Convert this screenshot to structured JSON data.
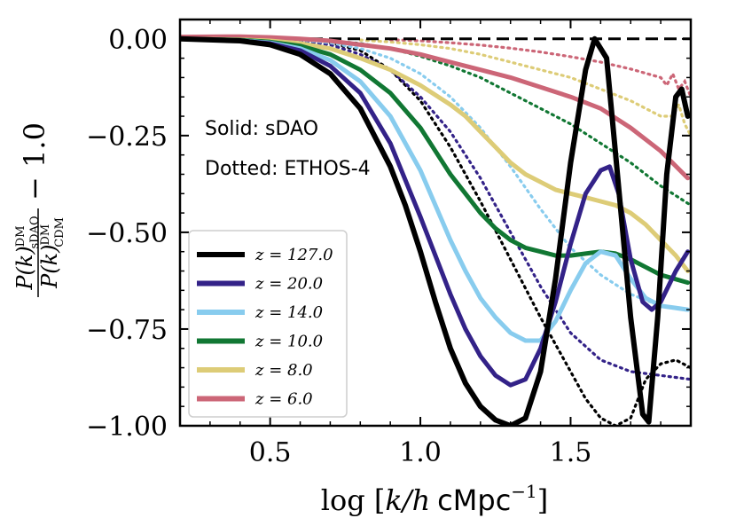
{
  "chart_data": {
    "type": "line",
    "title": "",
    "xlabel": "log [k/h cMpc^-1]",
    "xlabel_parts": {
      "prefix": "log [",
      "var": "k/h",
      "unit": "cMpc",
      "exp": "−1",
      "suffix": "]"
    },
    "ylabel": "P(k)_sDAO^DM / P(k)_CDM^DM − 1.0",
    "ylabel_parts": {
      "num": "P(k)",
      "num_sub": "sDAO",
      "num_sup": "DM",
      "den": "P(k)",
      "den_sub": "CDM",
      "den_sup": "DM",
      "tail": "− 1.0"
    },
    "xlim": [
      0.2,
      1.9
    ],
    "ylim": [
      -1.0,
      0.05
    ],
    "xticks": [
      0.5,
      1.0,
      1.5
    ],
    "xtick_labels": [
      "0.5",
      "1.0",
      "1.5"
    ],
    "yticks": [
      0.0,
      -0.25,
      -0.5,
      -0.75,
      -1.0
    ],
    "ytick_labels": [
      "0.00",
      "−0.25",
      "−0.50",
      "−0.75",
      "−1.00"
    ],
    "annotations": [
      "Solid: sDAO",
      "Dotted: ETHOS-4"
    ],
    "legend_position": "lower-left",
    "reference_line": {
      "y": 0.0,
      "style": "dashed",
      "color": "#000000"
    },
    "series": [
      {
        "name": "z = 127.0",
        "color": "#000000",
        "width": 6,
        "solid": [
          [
            0.2,
            0
          ],
          [
            0.4,
            -0.005
          ],
          [
            0.5,
            -0.015
          ],
          [
            0.6,
            -0.04
          ],
          [
            0.7,
            -0.09
          ],
          [
            0.8,
            -0.18
          ],
          [
            0.9,
            -0.33
          ],
          [
            0.95,
            -0.43
          ],
          [
            1.0,
            -0.55
          ],
          [
            1.05,
            -0.68
          ],
          [
            1.1,
            -0.8
          ],
          [
            1.15,
            -0.89
          ],
          [
            1.2,
            -0.95
          ],
          [
            1.25,
            -0.985
          ],
          [
            1.3,
            -1.0
          ],
          [
            1.35,
            -0.98
          ],
          [
            1.4,
            -0.86
          ],
          [
            1.45,
            -0.62
          ],
          [
            1.5,
            -0.32
          ],
          [
            1.55,
            -0.08
          ],
          [
            1.58,
            0.0
          ],
          [
            1.62,
            -0.05
          ],
          [
            1.65,
            -0.3
          ],
          [
            1.7,
            -0.72
          ],
          [
            1.74,
            -0.97
          ],
          [
            1.76,
            -0.99
          ],
          [
            1.79,
            -0.72
          ],
          [
            1.82,
            -0.35
          ],
          [
            1.85,
            -0.15
          ],
          [
            1.87,
            -0.13
          ],
          [
            1.89,
            -0.2
          ]
        ],
        "dotted": [
          [
            0.7,
            -0.01
          ],
          [
            0.8,
            -0.03
          ],
          [
            0.9,
            -0.08
          ],
          [
            1.0,
            -0.16
          ],
          [
            1.1,
            -0.28
          ],
          [
            1.2,
            -0.42
          ],
          [
            1.3,
            -0.57
          ],
          [
            1.4,
            -0.72
          ],
          [
            1.5,
            -0.86
          ],
          [
            1.55,
            -0.93
          ],
          [
            1.6,
            -0.98
          ],
          [
            1.65,
            -1.0
          ],
          [
            1.7,
            -0.98
          ],
          [
            1.75,
            -0.88
          ],
          [
            1.8,
            -0.84
          ],
          [
            1.85,
            -0.83
          ],
          [
            1.9,
            -0.85
          ]
        ]
      },
      {
        "name": "z = 20.0",
        "color": "#332288",
        "width": 5,
        "solid": [
          [
            0.2,
            0
          ],
          [
            0.4,
            -0.005
          ],
          [
            0.5,
            -0.012
          ],
          [
            0.6,
            -0.03
          ],
          [
            0.7,
            -0.07
          ],
          [
            0.8,
            -0.14
          ],
          [
            0.9,
            -0.27
          ],
          [
            1.0,
            -0.46
          ],
          [
            1.1,
            -0.66
          ],
          [
            1.15,
            -0.75
          ],
          [
            1.2,
            -0.82
          ],
          [
            1.25,
            -0.87
          ],
          [
            1.3,
            -0.895
          ],
          [
            1.35,
            -0.88
          ],
          [
            1.4,
            -0.8
          ],
          [
            1.45,
            -0.68
          ],
          [
            1.5,
            -0.53
          ],
          [
            1.55,
            -0.4
          ],
          [
            1.6,
            -0.34
          ],
          [
            1.63,
            -0.33
          ],
          [
            1.66,
            -0.4
          ],
          [
            1.7,
            -0.57
          ],
          [
            1.74,
            -0.68
          ],
          [
            1.77,
            -0.7
          ],
          [
            1.8,
            -0.68
          ],
          [
            1.85,
            -0.6
          ],
          [
            1.89,
            -0.55
          ]
        ],
        "dotted": [
          [
            0.6,
            -0.005
          ],
          [
            0.7,
            -0.015
          ],
          [
            0.8,
            -0.04
          ],
          [
            0.9,
            -0.08
          ],
          [
            1.0,
            -0.15
          ],
          [
            1.1,
            -0.24
          ],
          [
            1.2,
            -0.36
          ],
          [
            1.3,
            -0.5
          ],
          [
            1.4,
            -0.64
          ],
          [
            1.5,
            -0.76
          ],
          [
            1.6,
            -0.83
          ],
          [
            1.7,
            -0.86
          ],
          [
            1.8,
            -0.87
          ],
          [
            1.9,
            -0.88
          ]
        ]
      },
      {
        "name": "z = 14.0",
        "color": "#88CCEE",
        "width": 5,
        "solid": [
          [
            0.2,
            0
          ],
          [
            0.4,
            -0.004
          ],
          [
            0.5,
            -0.01
          ],
          [
            0.6,
            -0.025
          ],
          [
            0.7,
            -0.055
          ],
          [
            0.8,
            -0.11
          ],
          [
            0.9,
            -0.2
          ],
          [
            1.0,
            -0.34
          ],
          [
            1.05,
            -0.43
          ],
          [
            1.1,
            -0.52
          ],
          [
            1.15,
            -0.6
          ],
          [
            1.2,
            -0.67
          ],
          [
            1.25,
            -0.72
          ],
          [
            1.3,
            -0.76
          ],
          [
            1.35,
            -0.78
          ],
          [
            1.4,
            -0.78
          ],
          [
            1.45,
            -0.73
          ],
          [
            1.5,
            -0.65
          ],
          [
            1.55,
            -0.58
          ],
          [
            1.6,
            -0.55
          ],
          [
            1.65,
            -0.56
          ],
          [
            1.7,
            -0.62
          ],
          [
            1.75,
            -0.67
          ],
          [
            1.8,
            -0.69
          ],
          [
            1.89,
            -0.7
          ]
        ],
        "dotted": [
          [
            0.6,
            -0.003
          ],
          [
            0.7,
            -0.01
          ],
          [
            0.8,
            -0.025
          ],
          [
            0.9,
            -0.05
          ],
          [
            1.0,
            -0.09
          ],
          [
            1.1,
            -0.15
          ],
          [
            1.2,
            -0.23
          ],
          [
            1.3,
            -0.33
          ],
          [
            1.4,
            -0.44
          ],
          [
            1.5,
            -0.54
          ],
          [
            1.6,
            -0.61
          ],
          [
            1.7,
            -0.66
          ],
          [
            1.8,
            -0.69
          ],
          [
            1.9,
            -0.7
          ]
        ]
      },
      {
        "name": "z = 10.0",
        "color": "#117733",
        "width": 5,
        "solid": [
          [
            0.2,
            0
          ],
          [
            0.4,
            -0.003
          ],
          [
            0.5,
            -0.008
          ],
          [
            0.6,
            -0.018
          ],
          [
            0.7,
            -0.04
          ],
          [
            0.8,
            -0.08
          ],
          [
            0.9,
            -0.14
          ],
          [
            1.0,
            -0.23
          ],
          [
            1.05,
            -0.29
          ],
          [
            1.1,
            -0.35
          ],
          [
            1.15,
            -0.4
          ],
          [
            1.2,
            -0.45
          ],
          [
            1.25,
            -0.49
          ],
          [
            1.3,
            -0.52
          ],
          [
            1.35,
            -0.54
          ],
          [
            1.4,
            -0.55
          ],
          [
            1.45,
            -0.56
          ],
          [
            1.5,
            -0.56
          ],
          [
            1.55,
            -0.555
          ],
          [
            1.6,
            -0.55
          ],
          [
            1.65,
            -0.555
          ],
          [
            1.7,
            -0.57
          ],
          [
            1.75,
            -0.59
          ],
          [
            1.8,
            -0.61
          ],
          [
            1.89,
            -0.63
          ]
        ],
        "dotted": [
          [
            0.7,
            -0.005
          ],
          [
            0.8,
            -0.012
          ],
          [
            0.9,
            -0.025
          ],
          [
            1.0,
            -0.045
          ],
          [
            1.1,
            -0.07
          ],
          [
            1.2,
            -0.1
          ],
          [
            1.3,
            -0.14
          ],
          [
            1.4,
            -0.18
          ],
          [
            1.5,
            -0.22
          ],
          [
            1.6,
            -0.27
          ],
          [
            1.7,
            -0.32
          ],
          [
            1.8,
            -0.38
          ],
          [
            1.9,
            -0.43
          ]
        ]
      },
      {
        "name": "z = 8.0",
        "color": "#DDCC77",
        "width": 5,
        "solid": [
          [
            0.2,
            0
          ],
          [
            0.4,
            -0.002
          ],
          [
            0.5,
            -0.005
          ],
          [
            0.6,
            -0.012
          ],
          [
            0.7,
            -0.025
          ],
          [
            0.8,
            -0.05
          ],
          [
            0.9,
            -0.08
          ],
          [
            1.0,
            -0.12
          ],
          [
            1.05,
            -0.145
          ],
          [
            1.1,
            -0.17
          ],
          [
            1.15,
            -0.2
          ],
          [
            1.2,
            -0.24
          ],
          [
            1.25,
            -0.28
          ],
          [
            1.3,
            -0.32
          ],
          [
            1.35,
            -0.35
          ],
          [
            1.4,
            -0.37
          ],
          [
            1.45,
            -0.39
          ],
          [
            1.5,
            -0.4
          ],
          [
            1.55,
            -0.41
          ],
          [
            1.6,
            -0.42
          ],
          [
            1.65,
            -0.43
          ],
          [
            1.7,
            -0.45
          ],
          [
            1.75,
            -0.48
          ],
          [
            1.8,
            -0.52
          ],
          [
            1.85,
            -0.56
          ],
          [
            1.89,
            -0.6
          ]
        ],
        "dotted": [
          [
            0.8,
            -0.003
          ],
          [
            0.9,
            -0.008
          ],
          [
            1.0,
            -0.015
          ],
          [
            1.1,
            -0.025
          ],
          [
            1.2,
            -0.04
          ],
          [
            1.3,
            -0.06
          ],
          [
            1.4,
            -0.08
          ],
          [
            1.5,
            -0.1
          ],
          [
            1.6,
            -0.13
          ],
          [
            1.7,
            -0.16
          ],
          [
            1.8,
            -0.2
          ],
          [
            1.84,
            -0.2
          ],
          [
            1.86,
            -0.17
          ],
          [
            1.88,
            -0.22
          ],
          [
            1.9,
            -0.25
          ]
        ]
      },
      {
        "name": "z = 6.0",
        "color": "#CC6677",
        "width": 5,
        "solid": [
          [
            0.2,
            0.005
          ],
          [
            0.4,
            0.006
          ],
          [
            0.5,
            0.004
          ],
          [
            0.6,
            0.0
          ],
          [
            0.7,
            -0.005
          ],
          [
            0.8,
            -0.015
          ],
          [
            0.9,
            -0.025
          ],
          [
            1.0,
            -0.04
          ],
          [
            1.1,
            -0.06
          ],
          [
            1.2,
            -0.08
          ],
          [
            1.3,
            -0.1
          ],
          [
            1.4,
            -0.125
          ],
          [
            1.5,
            -0.15
          ],
          [
            1.6,
            -0.18
          ],
          [
            1.7,
            -0.23
          ],
          [
            1.8,
            -0.29
          ],
          [
            1.89,
            -0.36
          ]
        ],
        "dotted": [
          [
            0.9,
            -0.002
          ],
          [
            1.0,
            -0.005
          ],
          [
            1.1,
            -0.01
          ],
          [
            1.2,
            -0.016
          ],
          [
            1.3,
            -0.024
          ],
          [
            1.4,
            -0.034
          ],
          [
            1.5,
            -0.046
          ],
          [
            1.6,
            -0.06
          ],
          [
            1.7,
            -0.078
          ],
          [
            1.8,
            -0.1
          ],
          [
            1.82,
            -0.12
          ],
          [
            1.84,
            -0.09
          ],
          [
            1.86,
            -0.13
          ],
          [
            1.88,
            -0.11
          ],
          [
            1.9,
            -0.15
          ]
        ]
      }
    ]
  }
}
